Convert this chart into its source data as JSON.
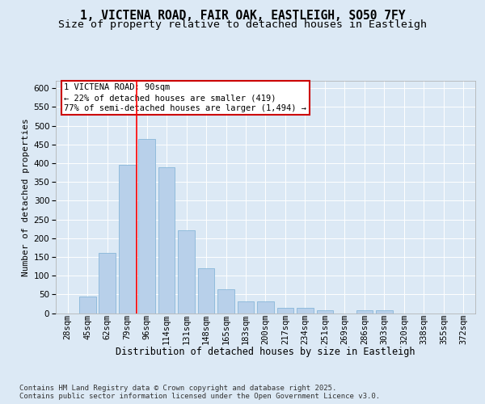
{
  "title": "1, VICTENA ROAD, FAIR OAK, EASTLEIGH, SO50 7FY",
  "subtitle": "Size of property relative to detached houses in Eastleigh",
  "xlabel": "Distribution of detached houses by size in Eastleigh",
  "ylabel": "Number of detached properties",
  "categories": [
    "28sqm",
    "45sqm",
    "62sqm",
    "79sqm",
    "96sqm",
    "114sqm",
    "131sqm",
    "148sqm",
    "165sqm",
    "183sqm",
    "200sqm",
    "217sqm",
    "234sqm",
    "251sqm",
    "269sqm",
    "286sqm",
    "303sqm",
    "320sqm",
    "338sqm",
    "355sqm",
    "372sqm"
  ],
  "values": [
    0,
    45,
    160,
    395,
    465,
    390,
    220,
    120,
    63,
    32,
    32,
    13,
    13,
    8,
    0,
    7,
    8,
    0,
    0,
    0,
    0
  ],
  "bar_color": "#b8d0ea",
  "bar_edge_color": "#7aafd4",
  "background_color": "#dce9f5",
  "plot_bg_color": "#dce9f5",
  "grid_color": "#ffffff",
  "red_line_x": 3.5,
  "annotation_text": "1 VICTENA ROAD: 90sqm\n← 22% of detached houses are smaller (419)\n77% of semi-detached houses are larger (1,494) →",
  "annotation_box_color": "#ffffff",
  "annotation_border_color": "#cc0000",
  "ylim": [
    0,
    620
  ],
  "yticks": [
    0,
    50,
    100,
    150,
    200,
    250,
    300,
    350,
    400,
    450,
    500,
    550,
    600
  ],
  "footer": "Contains HM Land Registry data © Crown copyright and database right 2025.\nContains public sector information licensed under the Open Government Licence v3.0.",
  "title_fontsize": 10.5,
  "subtitle_fontsize": 9.5,
  "xlabel_fontsize": 8.5,
  "ylabel_fontsize": 8,
  "tick_fontsize": 7.5,
  "annotation_fontsize": 7.5,
  "footer_fontsize": 6.5
}
